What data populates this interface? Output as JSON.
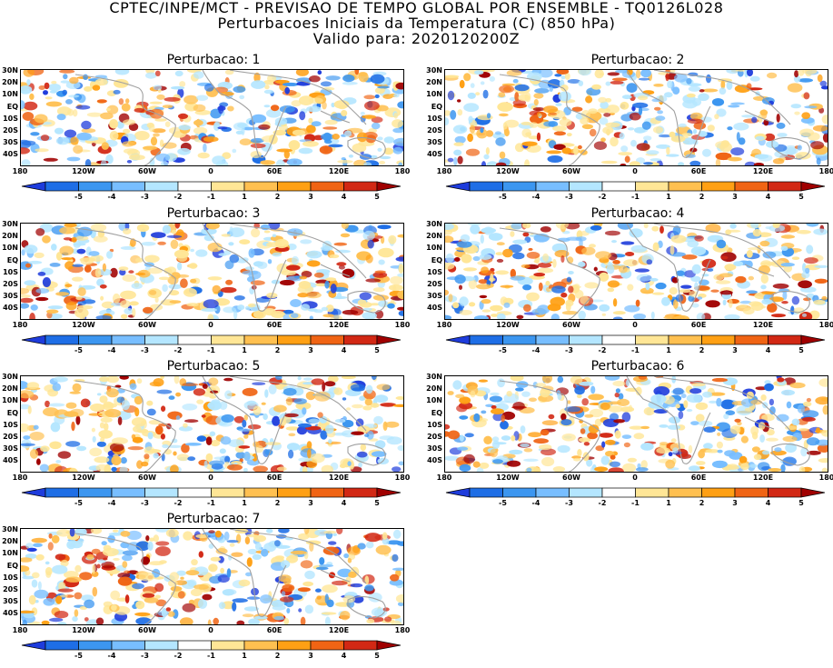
{
  "header": {
    "line1": "CPTEC/INPE/MCT - PREVISAO DE TEMPO GLOBAL POR ENSEMBLE - TQ0126L028",
    "line2": "Perturbacoes Iniciais da Temperatura (C) (850 hPa)",
    "line3": "Valido para: 2020120200Z"
  },
  "panels": [
    {
      "title": "Perturbacao: 1"
    },
    {
      "title": "Perturbacao: 2"
    },
    {
      "title": "Perturbacao: 3"
    },
    {
      "title": "Perturbacao: 4"
    },
    {
      "title": "Perturbacao: 5"
    },
    {
      "title": "Perturbacao: 6"
    },
    {
      "title": "Perturbacao: 7"
    }
  ],
  "lat_labels": [
    "30N",
    "20N",
    "10N",
    "EQ",
    "10S",
    "20S",
    "30S",
    "40S"
  ],
  "lon_labels": [
    "180",
    "120W",
    "60W",
    "0",
    "60E",
    "120E",
    "180"
  ],
  "colorbar": {
    "labels": [
      "-5",
      "-4",
      "-3",
      "-2",
      "-1",
      "1",
      "2",
      "3",
      "4",
      "5"
    ],
    "colors": [
      "#1e3cdc",
      "#1e6ee6",
      "#3c96f0",
      "#78beff",
      "#b4e6ff",
      "#ffffff",
      "#ffe696",
      "#ffc050",
      "#ffa014",
      "#f06414",
      "#d22814",
      "#a00000"
    ]
  }
}
